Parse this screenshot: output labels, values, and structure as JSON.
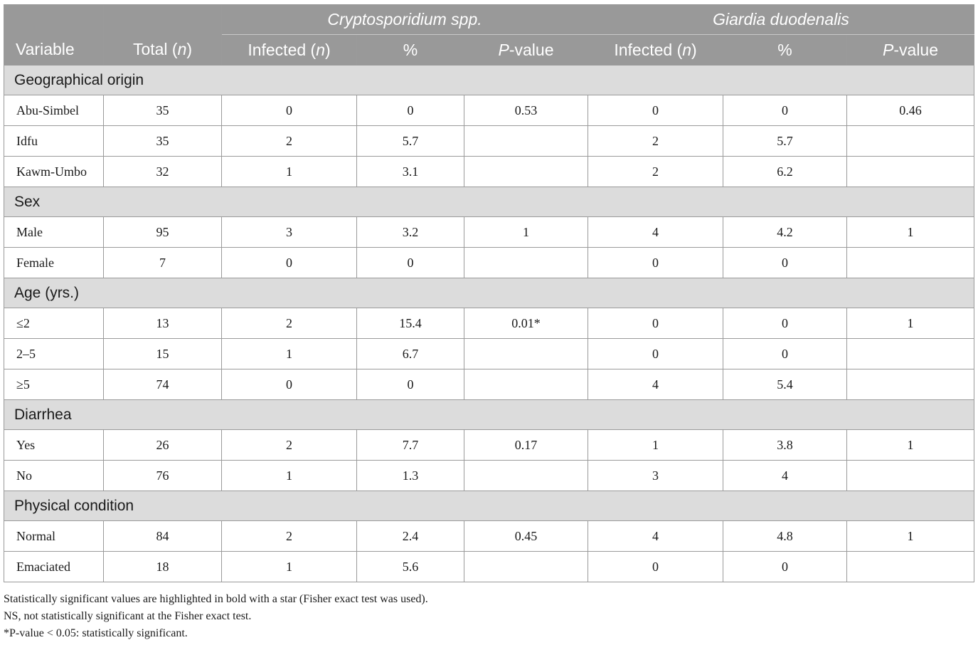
{
  "header": {
    "variable": "Variable",
    "total_prefix": "Total (",
    "total_n": "n",
    "total_suffix": ")",
    "groups": [
      {
        "name": "Cryptosporidium",
        "suffix": " spp."
      },
      {
        "name": "Giardia duodenalis",
        "suffix": ""
      }
    ],
    "infected_prefix": "Infected (",
    "infected_n": "n",
    "infected_suffix": ")",
    "percent": "%",
    "p_italic": "P",
    "p_suffix": "-value"
  },
  "sections": [
    {
      "title": "Geographical origin",
      "rows": [
        {
          "label": "Abu-Simbel",
          "total": "35",
          "c_inf": "0",
          "c_pct": "0",
          "c_p": "0.53",
          "g_inf": "0",
          "g_pct": "0",
          "g_p": "0.46"
        },
        {
          "label": "Idfu",
          "total": "35",
          "c_inf": "2",
          "c_pct": "5.7",
          "c_p": "",
          "g_inf": "2",
          "g_pct": "5.7",
          "g_p": ""
        },
        {
          "label": "Kawm-Umbo",
          "total": "32",
          "c_inf": "1",
          "c_pct": "3.1",
          "c_p": "",
          "g_inf": "2",
          "g_pct": "6.2",
          "g_p": ""
        }
      ]
    },
    {
      "title": "Sex",
      "rows": [
        {
          "label": "Male",
          "total": "95",
          "c_inf": "3",
          "c_pct": "3.2",
          "c_p": "1",
          "g_inf": "4",
          "g_pct": "4.2",
          "g_p": "1"
        },
        {
          "label": "Female",
          "total": "7",
          "c_inf": "0",
          "c_pct": "0",
          "c_p": "",
          "g_inf": "0",
          "g_pct": "0",
          "g_p": ""
        }
      ]
    },
    {
      "title": "Age (yrs.)",
      "rows": [
        {
          "label": "≤2",
          "total": "13",
          "c_inf": "2",
          "c_pct": "15.4",
          "c_p": "0.01*",
          "g_inf": "0",
          "g_pct": "0",
          "g_p": "1"
        },
        {
          "label": "2–5",
          "total": "15",
          "c_inf": "1",
          "c_pct": "6.7",
          "c_p": "",
          "g_inf": "0",
          "g_pct": "0",
          "g_p": ""
        },
        {
          "label": "≥5",
          "total": "74",
          "c_inf": "0",
          "c_pct": "0",
          "c_p": "",
          "g_inf": "4",
          "g_pct": "5.4",
          "g_p": ""
        }
      ]
    },
    {
      "title": "Diarrhea",
      "rows": [
        {
          "label": "Yes",
          "total": "26",
          "c_inf": "2",
          "c_pct": "7.7",
          "c_p": "0.17",
          "g_inf": "1",
          "g_pct": "3.8",
          "g_p": "1"
        },
        {
          "label": "No",
          "total": "76",
          "c_inf": "1",
          "c_pct": "1.3",
          "c_p": "",
          "g_inf": "3",
          "g_pct": "4",
          "g_p": ""
        }
      ]
    },
    {
      "title": "Physical condition",
      "rows": [
        {
          "label": "Normal",
          "total": "84",
          "c_inf": "2",
          "c_pct": "2.4",
          "c_p": "0.45",
          "g_inf": "4",
          "g_pct": "4.8",
          "g_p": "1"
        },
        {
          "label": "Emaciated",
          "total": "18",
          "c_inf": "1",
          "c_pct": "5.6",
          "c_p": "",
          "g_inf": "0",
          "g_pct": "0",
          "g_p": ""
        }
      ]
    }
  ],
  "footnotes": [
    "Statistically significant values are highlighted in bold with a star (Fisher exact test was used).",
    "NS, not statistically significant at the Fisher exact test.",
    "*P-value < 0.05: statistically significant."
  ],
  "colors": {
    "header_bg": "#999999",
    "section_bg": "#dcdcdc",
    "border": "#9a9a9a"
  }
}
